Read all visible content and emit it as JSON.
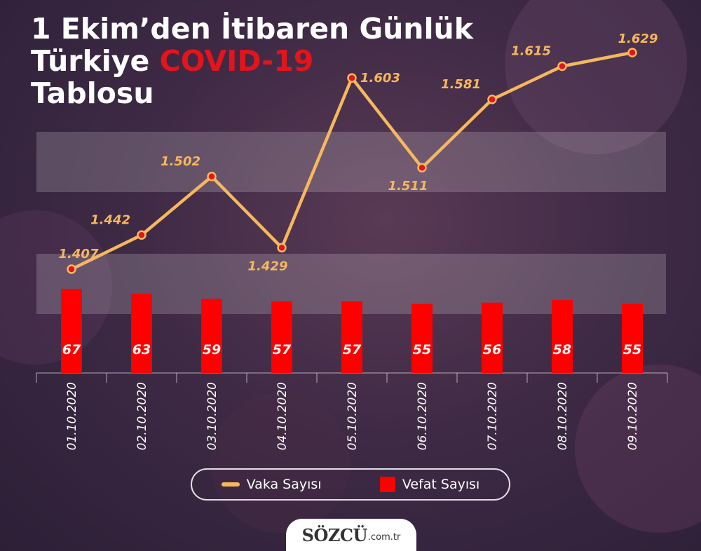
{
  "title": {
    "line1": "1 Ekim’den İtibaren Günlük",
    "line2_prefix": "Türkiye ",
    "line2_accent": "COVID-19",
    "line3": "Tablosu"
  },
  "chart_data": {
    "type": "bar+line",
    "categories": [
      "01.10.2020",
      "02.10.2020",
      "03.10.2020",
      "04.10.2020",
      "05.10.2020",
      "06.10.2020",
      "07.10.2020",
      "08.10.2020",
      "09.10.2020"
    ],
    "series": [
      {
        "name": "Vaka Sayısı",
        "type": "line",
        "values": [
          1407,
          1442,
          1502,
          1429,
          1603,
          1511,
          1581,
          1615,
          1629
        ],
        "labels": [
          "1.407",
          "1.442",
          "1.502",
          "1.429",
          "1.603",
          "1.511",
          "1.581",
          "1.615",
          "1.629"
        ],
        "color": "#f6b85e"
      },
      {
        "name": "Vefat Sayısı",
        "type": "bar",
        "values": [
          67,
          63,
          59,
          57,
          57,
          55,
          56,
          58,
          55
        ],
        "labels": [
          "67",
          "63",
          "59",
          "57",
          "57",
          "55",
          "56",
          "58",
          "55"
        ],
        "color": "#ff0000"
      }
    ],
    "grid": false,
    "legend_position": "bottom"
  },
  "legend": {
    "cases_label": "Vaka Sayısı",
    "deaths_label": "Vefat Sayısı"
  },
  "logo": {
    "brand": "SÖZCÜ",
    "domain": ".com.tr"
  }
}
